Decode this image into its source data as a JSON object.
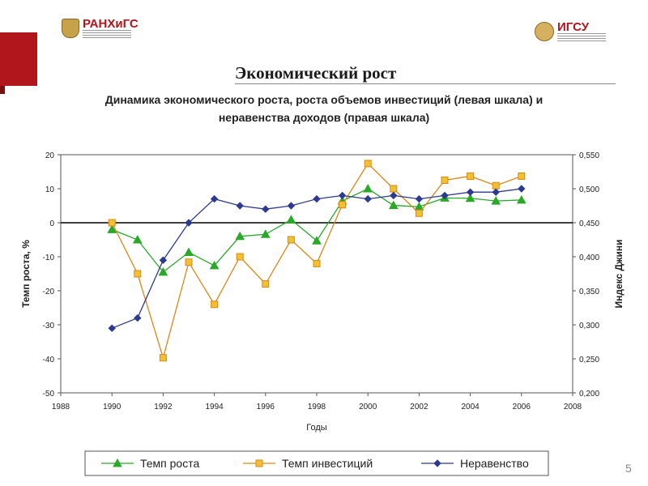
{
  "header": {
    "logo_left": "РАНХиГС",
    "logo_right": "ИГСУ",
    "title": "Экономический рост",
    "slide_number": "5"
  },
  "chart_data": {
    "type": "line",
    "title": "Динамика экономического роста, роста объемов инвестиций (левая шкала) и неравенства доходов (правая шкала)",
    "xlabel": "Годы",
    "ylabel_left": "Темп роста, %",
    "ylabel_right": "Индекс Джини",
    "xlim": [
      1988,
      2008
    ],
    "ylim_left": [
      -50,
      20
    ],
    "ylim_right": [
      0.2,
      0.55
    ],
    "x_ticks": [
      "1988",
      "1990",
      "1992",
      "1994",
      "1996",
      "1998",
      "2000",
      "2002",
      "2004",
      "2006",
      "2008"
    ],
    "y_left_ticks": [
      "20",
      "10",
      "0",
      "-10",
      "-20",
      "-30",
      "-40",
      "-50"
    ],
    "y_right_ticks": [
      "0,550",
      "0,500",
      "0,450",
      "0,400",
      "0,350",
      "0,300",
      "0,250",
      "0,200"
    ],
    "x": [
      1990,
      1991,
      1992,
      1993,
      1994,
      1995,
      1996,
      1997,
      1998,
      1999,
      2000,
      2001,
      2002,
      2003,
      2004,
      2005,
      2006
    ],
    "legend_placement": "bottom",
    "series": [
      {
        "name": "Темп роста",
        "axis": "left",
        "color": "#2aa82a",
        "marker": "triangle",
        "values": [
          -2,
          -5,
          -14.5,
          -8.7,
          -12.6,
          -4,
          -3.4,
          0.9,
          -5.3,
          6.4,
          10,
          5.1,
          4.7,
          7.3,
          7.2,
          6.4,
          6.7
        ]
      },
      {
        "name": "Темп инвестиций",
        "axis": "left",
        "color": "#d68a18",
        "marker": "square",
        "values": [
          0,
          -15,
          -39.7,
          -11.6,
          -24,
          -10,
          -18,
          -5,
          -12,
          5.3,
          17.4,
          10,
          2.8,
          12.5,
          13.7,
          10.9,
          13.7
        ]
      },
      {
        "name": "Неравенство",
        "axis": "right",
        "color": "#2e3a8c",
        "marker": "diamond",
        "values": [
          0.295,
          0.31,
          0.395,
          0.45,
          0.485,
          0.475,
          0.47,
          0.475,
          0.485,
          0.49,
          0.485,
          0.49,
          0.485,
          0.49,
          0.495,
          0.495,
          0.5
        ]
      }
    ]
  }
}
